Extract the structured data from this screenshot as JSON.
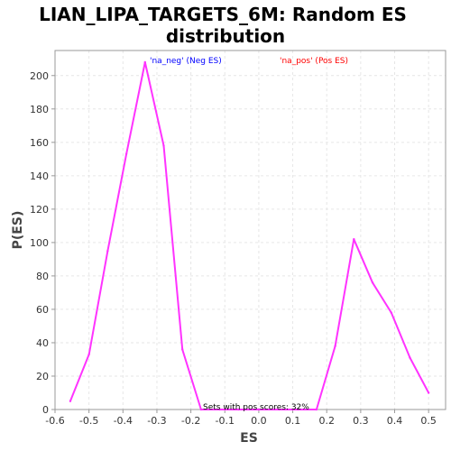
{
  "chart_data": {
    "type": "line",
    "title_line1": "LIAN_LIPA_TARGETS_6M: Random ES",
    "title_line2": "distribution",
    "xlabel": "ES",
    "ylabel": "P(ES)",
    "xlim": [
      -0.6,
      0.55
    ],
    "ylim": [
      0,
      215
    ],
    "x_ticks": [
      -0.6,
      -0.5,
      -0.4,
      -0.3,
      -0.2,
      -0.1,
      0.0,
      0.1,
      0.2,
      0.3,
      0.4,
      0.5
    ],
    "x_tick_labels": [
      "-0.6",
      "-0.5",
      "-0.4",
      "-0.3",
      "-0.2",
      "-0.1",
      "0.0",
      "0.1",
      "0.2",
      "0.3",
      "0.4",
      "0.5"
    ],
    "y_ticks": [
      0,
      20,
      40,
      60,
      80,
      100,
      120,
      140,
      160,
      180,
      200
    ],
    "y_tick_labels": [
      "0",
      "20",
      "40",
      "60",
      "80",
      "100",
      "120",
      "140",
      "160",
      "180",
      "200"
    ],
    "grid": true,
    "legend": [
      {
        "label": "'na_neg' (Neg ES)",
        "color": "#0000ff"
      },
      {
        "label": "'na_pos' (Pos ES)",
        "color": "#ff0000"
      }
    ],
    "annotation": "Sets with pos scores: 32%",
    "series": [
      {
        "color": "#ff33ff",
        "x": [
          -0.555,
          -0.5,
          -0.445,
          -0.39,
          -0.335,
          -0.28,
          -0.225,
          -0.17,
          -0.115,
          -0.06,
          0.0,
          0.06,
          0.115,
          0.17,
          0.225,
          0.28,
          0.335,
          0.39,
          0.445,
          0.5
        ],
        "y": [
          5,
          33,
          95,
          153,
          208,
          158,
          36,
          0,
          0,
          0,
          0,
          0,
          0,
          0,
          38,
          102,
          76,
          58,
          31,
          10
        ]
      }
    ]
  }
}
